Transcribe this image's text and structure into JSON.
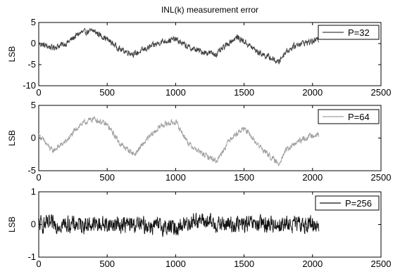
{
  "chart_data": [
    {
      "type": "line",
      "title": "INL(k) measurement error",
      "ylabel": "LSB",
      "xlabel": "",
      "xlim": [
        0,
        2500
      ],
      "ylim": [
        -10,
        5
      ],
      "xticks": [
        0,
        500,
        1000,
        1500,
        2000,
        2500
      ],
      "yticks": [
        -10,
        -5,
        0,
        5
      ],
      "grid": false,
      "legend_position": "top-right",
      "x_range_of_series": [
        0,
        2047
      ],
      "series": [
        {
          "name": "P=32",
          "color": "#404040",
          "approx_trend": {
            "x": [
              0,
              100,
              200,
              300,
              400,
              500,
              600,
              700,
              800,
              900,
              1000,
              1100,
              1200,
              1300,
              1400,
              1450,
              1500,
              1600,
              1700,
              1750,
              1800,
              1900,
              2000,
              2047
            ],
            "y": [
              0,
              -1,
              0,
              2.5,
              3,
              1,
              -1.5,
              -2.5,
              -1,
              0.5,
              1,
              -1,
              -2,
              -2.5,
              0.5,
              1.5,
              0.5,
              -2,
              -3.5,
              -4.5,
              -2,
              0,
              0.5,
              1
            ]
          },
          "noise_amplitude": 1
        }
      ]
    },
    {
      "type": "line",
      "title": "",
      "ylabel": "LSB",
      "xlabel": "",
      "xlim": [
        0,
        2500
      ],
      "ylim": [
        -5,
        5
      ],
      "xticks": [
        0,
        500,
        1000,
        1500,
        2000,
        2500
      ],
      "yticks": [
        -5,
        0,
        5
      ],
      "grid": false,
      "legend_position": "top-right",
      "x_range_of_series": [
        0,
        2047
      ],
      "series": [
        {
          "name": "P=64",
          "color": "#a0a0a0",
          "approx_trend": {
            "x": [
              0,
              100,
              200,
              300,
              400,
              500,
              600,
              700,
              800,
              900,
              1000,
              1100,
              1200,
              1300,
              1400,
              1500,
              1600,
              1700,
              1750,
              1800,
              1900,
              2000,
              2047
            ],
            "y": [
              0.5,
              -2,
              -0.5,
              2,
              3,
              2,
              -1,
              -2.5,
              0,
              2,
              2.5,
              -1,
              -2.5,
              -3.5,
              0,
              1.5,
              -1,
              -3,
              -4,
              -2,
              -0.5,
              0.5,
              0.5
            ]
          },
          "noise_amplitude": 0.6
        }
      ]
    },
    {
      "type": "line",
      "title": "",
      "ylabel": "LSB",
      "xlabel": "",
      "xlim": [
        0,
        2500
      ],
      "ylim": [
        -1,
        1
      ],
      "xticks": [
        0,
        500,
        1000,
        1500,
        2000,
        2500
      ],
      "yticks": [
        -1,
        0,
        1
      ],
      "grid": false,
      "legend_position": "top-right",
      "x_range_of_series": [
        0,
        2047
      ],
      "series": [
        {
          "name": "P=256",
          "color": "#111111",
          "approx_trend": {
            "x": [
              0,
              400,
              700,
              1000,
              1150,
              1300,
              1600,
              2047
            ],
            "y": [
              0,
              0,
              0,
              -0.1,
              0.15,
              0,
              0,
              0
            ]
          },
          "noise_amplitude": 0.35
        }
      ]
    }
  ]
}
